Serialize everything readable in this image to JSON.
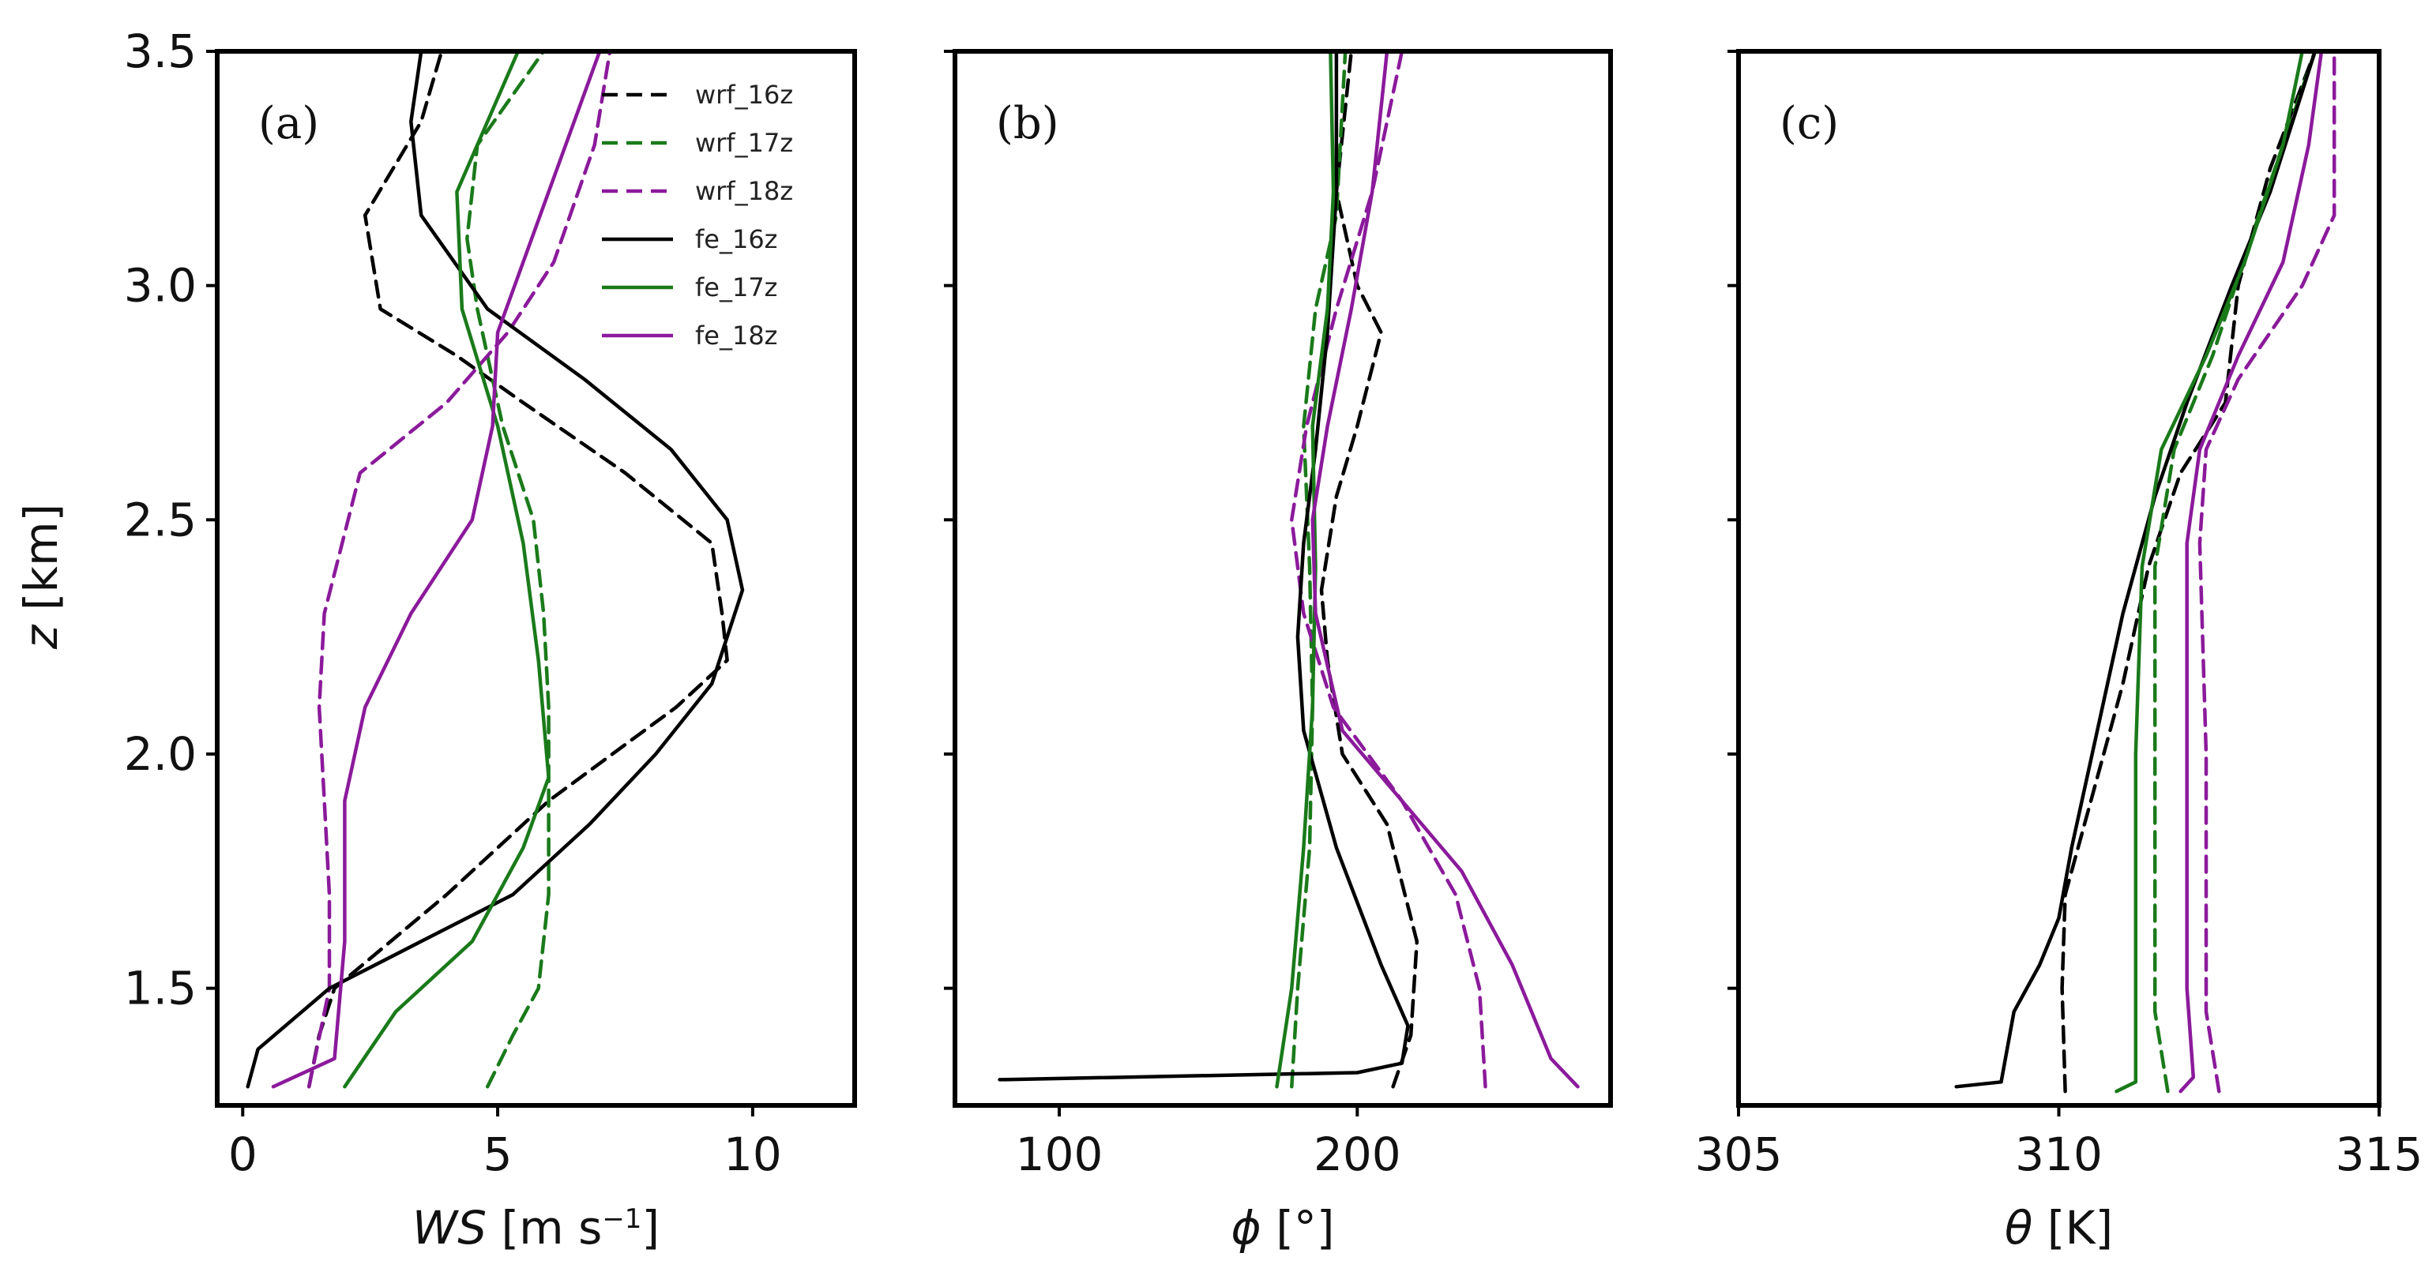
{
  "colors": {
    "black": "#000000",
    "green": "#1a7a1a",
    "purple": "#8b1a9b"
  },
  "legend": [
    {
      "name": "wrf_16z",
      "color": "#000000",
      "dash": true
    },
    {
      "name": "wrf_17z",
      "color": "#1a7a1a",
      "dash": true
    },
    {
      "name": "wrf_18z",
      "color": "#8b1a9b",
      "dash": true
    },
    {
      "name": "fe_16z",
      "color": "#000000",
      "dash": false
    },
    {
      "name": "fe_17z",
      "color": "#1a7a1a",
      "dash": false
    },
    {
      "name": "fe_18z",
      "color": "#8b1a9b",
      "dash": false
    }
  ],
  "chart_data": [
    {
      "type": "line",
      "panel_label": "(a)",
      "xlabel_symbol": "WS",
      "xlabel_unit": " [m s",
      "xlabel_sup": "−1",
      "xlabel_end": "]",
      "ylabel_symbol": "z",
      "ylabel_unit": " [km]",
      "xlim": [
        -0.5,
        12
      ],
      "ylim": [
        1.25,
        3.5
      ],
      "xticks": [
        0,
        5,
        10
      ],
      "xtick_labels": [
        "0",
        "5",
        "10"
      ],
      "yticks": [
        1.5,
        2.0,
        2.5,
        3.0,
        3.5
      ],
      "ytick_labels": [
        "1.5",
        "2.0",
        "2.5",
        "3.0",
        "3.5"
      ],
      "series": [
        {
          "name": "wrf_16z",
          "color": "#000000",
          "dash": true,
          "points": [
            [
              1.3,
              1.29
            ],
            [
              1.5,
              1.4
            ],
            [
              1.8,
              1.5
            ],
            [
              4,
              1.7
            ],
            [
              6,
              1.9
            ],
            [
              8.5,
              2.1
            ],
            [
              9.5,
              2.2
            ],
            [
              9.4,
              2.3
            ],
            [
              9.2,
              2.45
            ],
            [
              7.5,
              2.6
            ],
            [
              5.5,
              2.75
            ],
            [
              4.2,
              2.85
            ],
            [
              2.7,
              2.95
            ],
            [
              2.4,
              3.15
            ],
            [
              3.5,
              3.35
            ],
            [
              3.9,
              3.5
            ]
          ]
        },
        {
          "name": "wrf_17z",
          "color": "#1a7a1a",
          "dash": true,
          "points": [
            [
              4.8,
              1.29
            ],
            [
              5.3,
              1.4
            ],
            [
              5.8,
              1.5
            ],
            [
              6,
              1.7
            ],
            [
              6,
              2.0
            ],
            [
              6,
              2.1
            ],
            [
              5.9,
              2.3
            ],
            [
              5.7,
              2.5
            ],
            [
              5.1,
              2.7
            ],
            [
              4.6,
              2.95
            ],
            [
              4.4,
              3.1
            ],
            [
              4.6,
              3.3
            ],
            [
              5.9,
              3.5
            ]
          ]
        },
        {
          "name": "wrf_18z",
          "color": "#8b1a9b",
          "dash": true,
          "points": [
            [
              1.3,
              1.29
            ],
            [
              1.7,
              1.5
            ],
            [
              1.7,
              1.7
            ],
            [
              1.6,
              1.9
            ],
            [
              1.5,
              2.1
            ],
            [
              1.6,
              2.3
            ],
            [
              2.3,
              2.6
            ],
            [
              4,
              2.75
            ],
            [
              5.2,
              2.9
            ],
            [
              6.1,
              3.05
            ],
            [
              6.9,
              3.3
            ],
            [
              7.2,
              3.5
            ]
          ]
        },
        {
          "name": "fe_16z",
          "color": "#000000",
          "dash": false,
          "points": [
            [
              0.1,
              1.29
            ],
            [
              0.3,
              1.37
            ],
            [
              1.7,
              1.5
            ],
            [
              3.5,
              1.6
            ],
            [
              5.3,
              1.7
            ],
            [
              6.8,
              1.85
            ],
            [
              8.1,
              2.0
            ],
            [
              9.2,
              2.15
            ],
            [
              9.8,
              2.35
            ],
            [
              9.5,
              2.5
            ],
            [
              8.4,
              2.65
            ],
            [
              6.7,
              2.8
            ],
            [
              4.8,
              2.95
            ],
            [
              3.5,
              3.15
            ],
            [
              3.3,
              3.35
            ],
            [
              3.5,
              3.5
            ]
          ]
        },
        {
          "name": "fe_17z",
          "color": "#1a7a1a",
          "dash": false,
          "points": [
            [
              2,
              1.29
            ],
            [
              3,
              1.45
            ],
            [
              4.5,
              1.6
            ],
            [
              5.5,
              1.8
            ],
            [
              6,
              1.95
            ],
            [
              5.8,
              2.2
            ],
            [
              5.5,
              2.45
            ],
            [
              5,
              2.7
            ],
            [
              4.3,
              2.95
            ],
            [
              4.2,
              3.2
            ],
            [
              5.4,
              3.5
            ]
          ]
        },
        {
          "name": "fe_18z",
          "color": "#8b1a9b",
          "dash": false,
          "points": [
            [
              0.6,
              1.29
            ],
            [
              1.8,
              1.35
            ],
            [
              2,
              1.6
            ],
            [
              2,
              1.9
            ],
            [
              2.4,
              2.1
            ],
            [
              3.3,
              2.3
            ],
            [
              4.5,
              2.5
            ],
            [
              4.9,
              2.7
            ],
            [
              5,
              2.9
            ],
            [
              6,
              3.2
            ],
            [
              7,
              3.5
            ]
          ]
        }
      ]
    },
    {
      "type": "line",
      "panel_label": "(b)",
      "xlabel_symbol": "ϕ",
      "xlabel_unit": " [°]",
      "xlim": [
        65,
        285
      ],
      "ylim": [
        1.25,
        3.5
      ],
      "xticks": [
        100,
        200
      ],
      "xtick_labels": [
        "100",
        "200"
      ],
      "yticks": [
        1.5,
        2.0,
        2.5,
        3.0,
        3.5
      ],
      "series": [
        {
          "name": "wrf_16z",
          "color": "#000000",
          "dash": true,
          "points": [
            [
              212,
              1.29
            ],
            [
              218,
              1.4
            ],
            [
              220,
              1.6
            ],
            [
              210,
              1.85
            ],
            [
              195,
              2.0
            ],
            [
              190,
              2.2
            ],
            [
              188,
              2.35
            ],
            [
              193,
              2.55
            ],
            [
              200,
              2.7
            ],
            [
              208,
              2.9
            ],
            [
              200,
              3.0
            ],
            [
              193,
              3.2
            ],
            [
              198,
              3.5
            ]
          ]
        },
        {
          "name": "wrf_17z",
          "color": "#1a7a1a",
          "dash": true,
          "points": [
            [
              178,
              1.29
            ],
            [
              180,
              1.5
            ],
            [
              184,
              1.8
            ],
            [
              185,
              2.1
            ],
            [
              184,
              2.4
            ],
            [
              182,
              2.7
            ],
            [
              186,
              2.95
            ],
            [
              193,
              3.15
            ],
            [
              196,
              3.5
            ]
          ]
        },
        {
          "name": "wrf_18z",
          "color": "#8b1a9b",
          "dash": true,
          "points": [
            [
              243,
              1.29
            ],
            [
              241,
              1.5
            ],
            [
              233,
              1.7
            ],
            [
              215,
              1.9
            ],
            [
              192,
              2.1
            ],
            [
              182,
              2.3
            ],
            [
              178,
              2.5
            ],
            [
              183,
              2.7
            ],
            [
              193,
              2.95
            ],
            [
              205,
              3.2
            ],
            [
              215,
              3.5
            ]
          ]
        },
        {
          "name": "fe_16z",
          "color": "#000000",
          "dash": false,
          "points": [
            [
              80,
              1.305
            ],
            [
              200,
              1.32
            ],
            [
              215,
              1.34
            ],
            [
              217,
              1.42
            ],
            [
              208,
              1.55
            ],
            [
              193,
              1.8
            ],
            [
              182,
              2.05
            ],
            [
              180,
              2.25
            ],
            [
              182,
              2.45
            ],
            [
              186,
              2.65
            ],
            [
              190,
              2.9
            ],
            [
              193,
              3.2
            ],
            [
              193,
              3.5
            ]
          ]
        },
        {
          "name": "fe_17z",
          "color": "#1a7a1a",
          "dash": false,
          "points": [
            [
              173,
              1.29
            ],
            [
              178,
              1.5
            ],
            [
              182,
              1.8
            ],
            [
              185,
              2.1
            ],
            [
              186,
              2.4
            ],
            [
              185,
              2.7
            ],
            [
              190,
              2.95
            ],
            [
              192,
              3.2
            ],
            [
              191,
              3.5
            ]
          ]
        },
        {
          "name": "fe_18z",
          "color": "#8b1a9b",
          "dash": false,
          "points": [
            [
              274,
              1.29
            ],
            [
              265,
              1.35
            ],
            [
              252,
              1.55
            ],
            [
              235,
              1.75
            ],
            [
              215,
              1.9
            ],
            [
              195,
              2.05
            ],
            [
              186,
              2.3
            ],
            [
              185,
              2.5
            ],
            [
              190,
              2.7
            ],
            [
              198,
              2.95
            ],
            [
              205,
              3.2
            ],
            [
              210,
              3.5
            ]
          ]
        }
      ]
    },
    {
      "type": "line",
      "panel_label": "(c)",
      "xlabel_symbol": "θ",
      "xlabel_unit": " [K]",
      "xlim": [
        305,
        315
      ],
      "ylim": [
        1.25,
        3.5
      ],
      "xticks": [
        305,
        310,
        315
      ],
      "xtick_labels": [
        "305",
        "310",
        "315"
      ],
      "yticks": [
        1.5,
        2.0,
        2.5,
        3.0,
        3.5
      ],
      "series": [
        {
          "name": "wrf_16z",
          "color": "#000000",
          "dash": true,
          "points": [
            [
              310.1,
              1.28
            ],
            [
              310.05,
              1.5
            ],
            [
              310.1,
              1.7
            ],
            [
              310.5,
              1.9
            ],
            [
              311,
              2.15
            ],
            [
              311.4,
              2.4
            ],
            [
              311.9,
              2.6
            ],
            [
              312.6,
              2.75
            ],
            [
              312.8,
              3.0
            ],
            [
              313.3,
              3.25
            ],
            [
              314,
              3.5
            ]
          ]
        },
        {
          "name": "wrf_17z",
          "color": "#1a7a1a",
          "dash": true,
          "points": [
            [
              311.7,
              1.28
            ],
            [
              311.5,
              1.45
            ],
            [
              311.5,
              2.0
            ],
            [
              311.5,
              2.4
            ],
            [
              311.8,
              2.65
            ],
            [
              312.4,
              2.85
            ],
            [
              313,
              3.1
            ],
            [
              313.5,
              3.3
            ],
            [
              314,
              3.5
            ]
          ]
        },
        {
          "name": "wrf_18z",
          "color": "#8b1a9b",
          "dash": true,
          "points": [
            [
              312.5,
              1.28
            ],
            [
              312.3,
              1.45
            ],
            [
              312.3,
              2.0
            ],
            [
              312.2,
              2.45
            ],
            [
              312.3,
              2.65
            ],
            [
              312.8,
              2.8
            ],
            [
              313.8,
              3.0
            ],
            [
              314.3,
              3.15
            ],
            [
              314.3,
              3.5
            ]
          ]
        },
        {
          "name": "fe_16z",
          "color": "#000000",
          "dash": false,
          "points": [
            [
              308.4,
              1.29
            ],
            [
              309.1,
              1.3
            ],
            [
              309.3,
              1.45
            ],
            [
              309.7,
              1.55
            ],
            [
              310,
              1.65
            ],
            [
              310.2,
              1.8
            ],
            [
              310.6,
              2.05
            ],
            [
              311,
              2.3
            ],
            [
              311.5,
              2.55
            ],
            [
              312,
              2.75
            ],
            [
              312.7,
              3.0
            ],
            [
              313.3,
              3.2
            ],
            [
              314,
              3.5
            ]
          ]
        },
        {
          "name": "fe_17z",
          "color": "#1a7a1a",
          "dash": false,
          "points": [
            [
              310.9,
              1.28
            ],
            [
              311.2,
              1.3
            ],
            [
              311.2,
              1.5
            ],
            [
              311.2,
              2.0
            ],
            [
              311.3,
              2.4
            ],
            [
              311.6,
              2.65
            ],
            [
              312.3,
              2.85
            ],
            [
              312.9,
              3.05
            ],
            [
              313.5,
              3.3
            ],
            [
              313.8,
              3.5
            ]
          ]
        },
        {
          "name": "fe_18z",
          "color": "#8b1a9b",
          "dash": false,
          "points": [
            [
              311.9,
              1.28
            ],
            [
              312.1,
              1.31
            ],
            [
              312.0,
              1.5
            ],
            [
              312.0,
              2.0
            ],
            [
              312.0,
              2.45
            ],
            [
              312.2,
              2.65
            ],
            [
              312.8,
              2.85
            ],
            [
              313.5,
              3.05
            ],
            [
              313.9,
              3.3
            ],
            [
              314.1,
              3.5
            ]
          ]
        }
      ]
    }
  ]
}
